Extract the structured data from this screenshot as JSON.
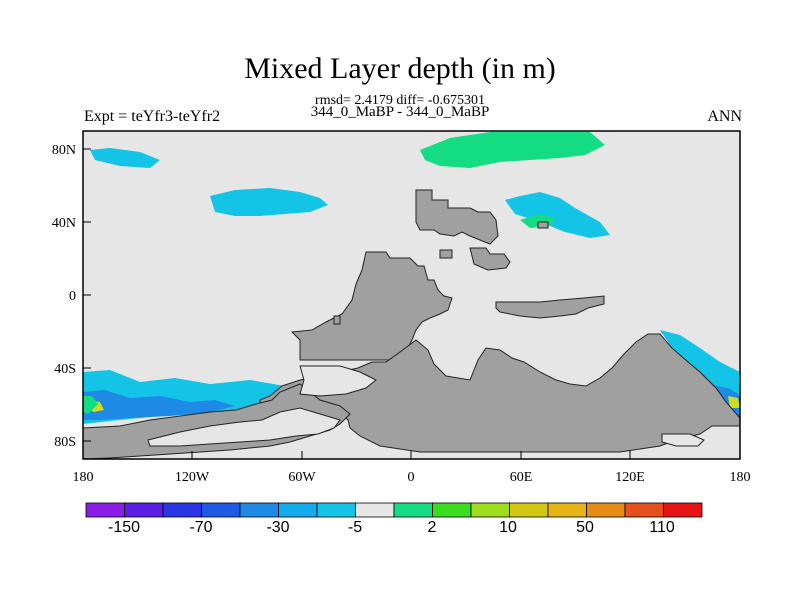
{
  "header": {
    "title": "Mixed Layer depth (in m)",
    "stats_line": "rmsd= 2.4179 diff= -0.675301",
    "experiment_line": "344_0_MaBP - 344_0_MaBP",
    "left_label": "Expt = teYfr3-teYfr2",
    "right_label": "ANN"
  },
  "axes": {
    "x_ticks": [
      "180",
      "120W",
      "60W",
      "0",
      "60E",
      "120E",
      "180"
    ],
    "y_ticks": [
      "80N",
      "40N",
      "0",
      "40S",
      "80S"
    ]
  },
  "colorbar": {
    "colors": [
      "#8a1ee6",
      "#5a1ee6",
      "#2a36e6",
      "#1e5ae6",
      "#1e8ae6",
      "#14aaee",
      "#14c4e6",
      "#e6e6e6",
      "#14dc82",
      "#3cdc1e",
      "#a0dc1e",
      "#d2c814",
      "#e6b414",
      "#e68c14",
      "#e6501e",
      "#e61414"
    ],
    "labels": [
      "-150",
      "-70",
      "-30",
      "-5",
      "2",
      "10",
      "50",
      "110"
    ]
  },
  "map_colors": {
    "ocean": "#e6e6e6",
    "land": "#a0a0a0",
    "shallow_neg": "#14c4e6",
    "mid_neg": "#1e8ae6",
    "deep_neg": "#1e5ae6",
    "pos": "#14dc82",
    "pos_strong": "#3cdc1e",
    "pos_yellow": "#d2dc1e"
  }
}
